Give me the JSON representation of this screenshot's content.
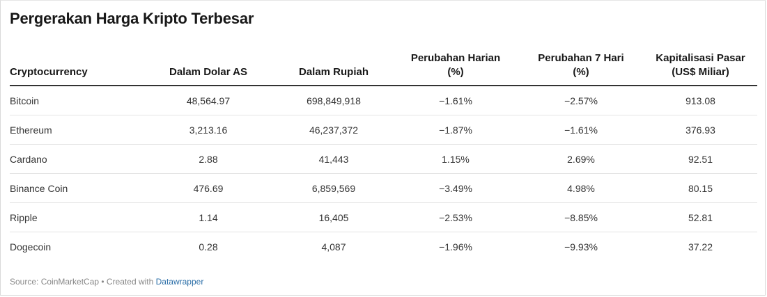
{
  "title": "Pergerakan Harga Kripto Terbesar",
  "columns": [
    {
      "line1": "Cryptocurrency",
      "line2": ""
    },
    {
      "line1": "Dalam Dolar AS",
      "line2": ""
    },
    {
      "line1": "Dalam Rupiah",
      "line2": ""
    },
    {
      "line1": "Perubahan Harian",
      "line2": "(%)"
    },
    {
      "line1": "Perubahan 7 Hari",
      "line2": "(%)"
    },
    {
      "line1": "Kapitalisasi Pasar",
      "line2": "(US$ Miliar)"
    }
  ],
  "rows": [
    {
      "name": "Bitcoin",
      "usd": "48,564.97",
      "idr": "698,849,918",
      "daily": "−1.61%",
      "weekly": "−2.57%",
      "mcap": "913.08"
    },
    {
      "name": "Ethereum",
      "usd": "3,213.16",
      "idr": "46,237,372",
      "daily": "−1.87%",
      "weekly": "−1.61%",
      "mcap": "376.93"
    },
    {
      "name": "Cardano",
      "usd": "2.88",
      "idr": "41,443",
      "daily": "1.15%",
      "weekly": "2.69%",
      "mcap": "92.51"
    },
    {
      "name": "Binance Coin",
      "usd": "476.69",
      "idr": "6,859,569",
      "daily": "−3.49%",
      "weekly": "4.98%",
      "mcap": "80.15"
    },
    {
      "name": "Ripple",
      "usd": "1.14",
      "idr": "16,405",
      "daily": "−2.53%",
      "weekly": "−8.85%",
      "mcap": "52.81"
    },
    {
      "name": "Dogecoin",
      "usd": "0.28",
      "idr": "4,087",
      "daily": "−1.96%",
      "weekly": "−9.93%",
      "mcap": "37.22"
    }
  ],
  "footer": {
    "source_text": "Source: CoinMarketCap • Created with ",
    "link_text": "Datawrapper"
  },
  "colors": {
    "negative": "#c0392b",
    "positive": "#2e8b6e",
    "link": "#2c6fa8"
  }
}
